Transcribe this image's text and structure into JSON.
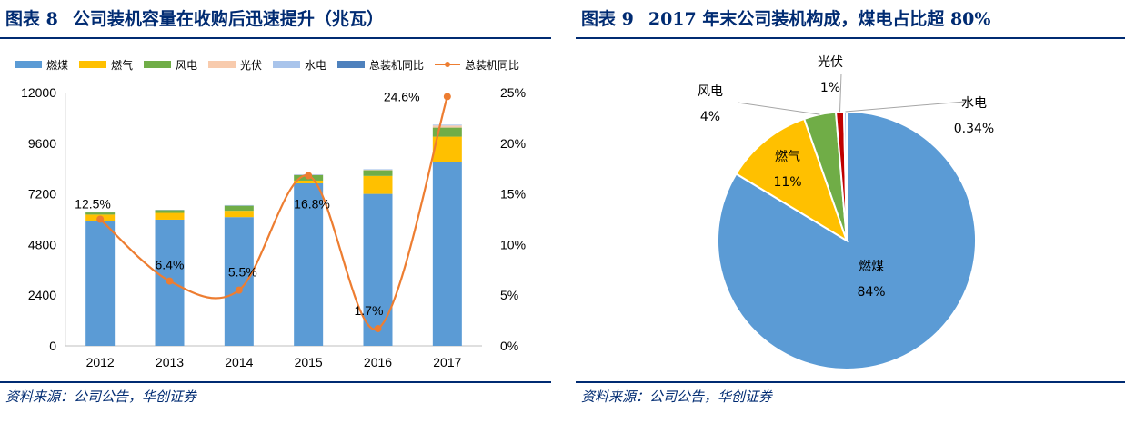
{
  "left": {
    "fig_num": "图表 8",
    "title": "公司装机容量在收购后迅速提升（兆瓦）",
    "source": "资料来源：公司公告，华创证券",
    "legend": [
      "燃煤",
      "燃气",
      "风电",
      "光伏",
      "水电",
      "总装机同比",
      "总装机同比"
    ]
  },
  "right": {
    "fig_num": "图表 9",
    "title": "2017 年末公司装机构成，煤电占比超 80%",
    "source": "资料来源：公司公告，华创证券"
  },
  "chart_data": [
    {
      "type": "bar",
      "stacked": true,
      "categories": [
        "2012",
        "2013",
        "2014",
        "2015",
        "2016",
        "2017"
      ],
      "series": [
        {
          "name": "燃煤",
          "color": "#5b9bd5",
          "values": [
            5920,
            5980,
            6100,
            7700,
            7200,
            8700
          ]
        },
        {
          "name": "燃气",
          "color": "#ffc000",
          "values": [
            300,
            320,
            300,
            130,
            850,
            1210
          ]
        },
        {
          "name": "风电",
          "color": "#70ad47",
          "values": [
            100,
            130,
            240,
            260,
            270,
            430
          ]
        },
        {
          "name": "光伏",
          "color": "#f8cbad",
          "values": [
            0,
            0,
            0,
            10,
            20,
            100
          ]
        },
        {
          "name": "水电",
          "color": "#a9c4eb",
          "values": [
            20,
            20,
            30,
            30,
            30,
            40
          ]
        }
      ],
      "line": {
        "name": "总装机同比",
        "color": "#ed7d31",
        "values": [
          12.5,
          6.4,
          5.5,
          16.8,
          1.7,
          24.6
        ],
        "labels": [
          "12.5%",
          "6.4%",
          "5.5%",
          "16.8%",
          "1.7%",
          "24.6%"
        ]
      },
      "ylim": [
        0,
        12000
      ],
      "yticks": [
        "0",
        "2400",
        "4800",
        "7200",
        "9600",
        "12000"
      ],
      "y2lim": [
        0,
        25
      ],
      "y2ticks": [
        "0%",
        "5%",
        "10%",
        "15%",
        "20%",
        "25%"
      ],
      "legend_position": "top"
    },
    {
      "type": "pie",
      "slices": [
        {
          "name": "燃煤",
          "value": 83.66,
          "label": "84%",
          "color": "#5b9bd5"
        },
        {
          "name": "燃气",
          "value": 11.0,
          "label": "11%",
          "color": "#ffc000"
        },
        {
          "name": "风电",
          "value": 4.0,
          "label": "4%",
          "color": "#70ad47"
        },
        {
          "name": "光伏",
          "value": 1.0,
          "label": "1%",
          "color": "#c00000"
        },
        {
          "name": "水电",
          "value": 0.34,
          "label": "0.34%",
          "color": "#a9c4eb"
        }
      ]
    }
  ]
}
